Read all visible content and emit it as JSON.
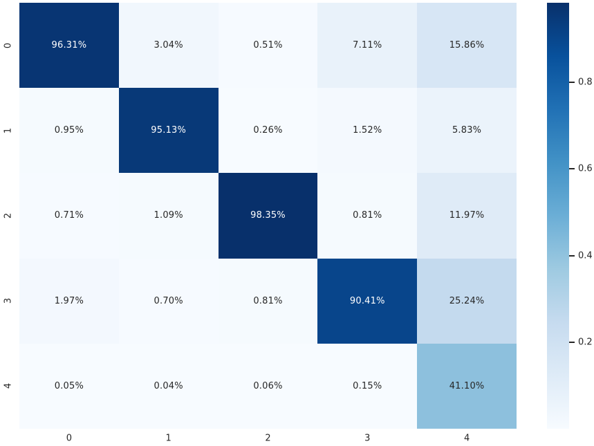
{
  "chart_data": {
    "type": "heatmap",
    "x_tick_labels": [
      "0",
      "1",
      "2",
      "3",
      "4"
    ],
    "y_tick_labels": [
      "0",
      "1",
      "2",
      "3",
      "4"
    ],
    "cell_labels": [
      [
        "96.31%",
        "3.04%",
        "0.51%",
        "7.11%",
        "15.86%"
      ],
      [
        "0.95%",
        "95.13%",
        "0.26%",
        "1.52%",
        "5.83%"
      ],
      [
        "0.71%",
        "1.09%",
        "98.35%",
        "0.81%",
        "11.97%"
      ],
      [
        "1.97%",
        "0.70%",
        "0.81%",
        "90.41%",
        "25.24%"
      ],
      [
        "0.05%",
        "0.04%",
        "0.06%",
        "0.15%",
        "41.10%"
      ]
    ],
    "values": [
      [
        0.9631,
        0.0304,
        0.0051,
        0.0711,
        0.1586
      ],
      [
        0.0095,
        0.9513,
        0.0026,
        0.0152,
        0.0583
      ],
      [
        0.0071,
        0.0109,
        0.9835,
        0.0081,
        0.1197
      ],
      [
        0.0197,
        0.007,
        0.0081,
        0.9041,
        0.2524
      ],
      [
        0.0005,
        0.0004,
        0.0006,
        0.0015,
        0.411
      ]
    ],
    "vmin": 0.0004,
    "vmax": 0.9835,
    "colorbar": {
      "position": "right",
      "tick_values": [
        0.2,
        0.4,
        0.6,
        0.8
      ],
      "tick_labels": [
        "0.2",
        "0.4",
        "0.6",
        "0.8"
      ]
    },
    "colormap": {
      "name": "Blues",
      "stops": [
        "#f7fbff",
        "#deebf7",
        "#c6dbef",
        "#9ecae1",
        "#6baed6",
        "#4292c6",
        "#2171b5",
        "#08519c",
        "#08306b"
      ]
    },
    "text_colors": {
      "on_dark": "#ffffff",
      "on_light": "#262626"
    },
    "tick_label_color": "#262626",
    "grid": false,
    "legend": false
  }
}
